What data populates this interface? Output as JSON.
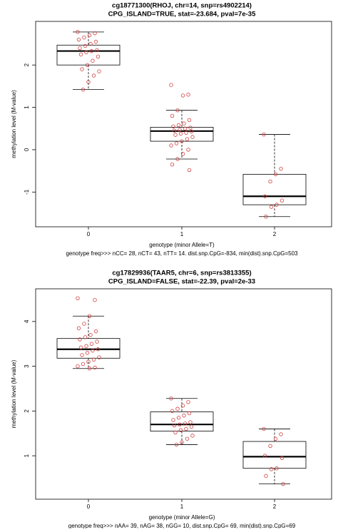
{
  "chart_data": [
    {
      "type": "box",
      "title": "cg18771300(RHOJ, chr=14, snp=rs4902214)",
      "subtitle": "CPG_ISLAND=TRUE, stat=-23.684, pval=7e-35",
      "y_label": "methylation level (M-value)",
      "x_label": "genotype (minor Allele=T)",
      "caption": "genotype freq>>> nCC= 28, nCT= 43, nTT= 14. dist.snp.CpG=-834, min(dist).snp.CpG=503",
      "categories": [
        "0",
        "1",
        "2"
      ],
      "boxes": [
        {
          "min": 1.42,
          "q1": 2.0,
          "median": 2.33,
          "q3": 2.47,
          "max": 2.78
        },
        {
          "min": -0.22,
          "q1": 0.2,
          "median": 0.44,
          "q3": 0.53,
          "max": 0.93
        },
        {
          "min": -1.58,
          "q1": -1.3,
          "median": -1.1,
          "q3": -0.58,
          "max": 0.36
        }
      ],
      "points": [
        [
          2.78,
          2.75,
          2.7,
          2.65,
          2.6,
          2.55,
          2.5,
          2.45,
          2.4,
          2.35,
          2.33,
          2.3,
          2.25,
          2.2,
          2.1,
          2.0,
          1.9,
          1.85,
          1.75,
          1.6,
          1.42
        ],
        [
          1.53,
          1.3,
          1.28,
          0.93,
          0.8,
          0.7,
          0.62,
          0.58,
          0.55,
          0.52,
          0.5,
          0.47,
          0.45,
          0.43,
          0.4,
          0.38,
          0.35,
          0.3,
          0.25,
          0.2,
          0.15,
          0.1,
          0.0,
          -0.1,
          -0.22,
          -0.35,
          -0.48
        ],
        [
          0.36,
          -0.45,
          -0.58,
          -0.75,
          -1.1,
          -1.2,
          -1.3,
          -1.35,
          -1.58
        ]
      ],
      "point_color": "#d04040",
      "ylim": [
        -1.82,
        3.03
      ],
      "yticks": [
        -1,
        0,
        1,
        2
      ]
    },
    {
      "type": "box",
      "title": "cg17829936(TAAR5, chr=6, snp=rs3813355)",
      "subtitle": "CPG_ISLAND=FALSE, stat=-22.39, pval=2e-33",
      "y_label": "methylation level (M-value)",
      "x_label": "genotype (minor Allele=G)",
      "caption": "genotype freq>>> nAA= 39, nAG= 38, nGG= 10, dist.snp.CpG= 69, min(dist).snp.CpG=69",
      "categories": [
        "0",
        "1",
        "2"
      ],
      "boxes": [
        {
          "min": 2.95,
          "q1": 3.18,
          "median": 3.38,
          "q3": 3.62,
          "max": 4.12
        },
        {
          "min": 1.25,
          "q1": 1.55,
          "median": 1.7,
          "q3": 1.98,
          "max": 2.28
        },
        {
          "min": 0.37,
          "q1": 0.72,
          "median": 0.98,
          "q3": 1.32,
          "max": 1.6
        }
      ],
      "points": [
        [
          4.52,
          4.48,
          4.12,
          3.95,
          3.85,
          3.78,
          3.7,
          3.65,
          3.6,
          3.55,
          3.5,
          3.45,
          3.42,
          3.38,
          3.35,
          3.3,
          3.25,
          3.2,
          3.15,
          3.1,
          3.05,
          3.0,
          2.97,
          2.95
        ],
        [
          2.28,
          2.2,
          2.12,
          2.05,
          2.0,
          1.95,
          1.9,
          1.85,
          1.8,
          1.75,
          1.72,
          1.7,
          1.68,
          1.65,
          1.6,
          1.57,
          1.52,
          1.45,
          1.38,
          1.3,
          1.25
        ],
        [
          1.6,
          1.48,
          1.38,
          1.22,
          1.0,
          0.95,
          0.72,
          0.7,
          0.55,
          0.37
        ]
      ],
      "point_color": "#d04040",
      "ylim": [
        0.03,
        4.73
      ],
      "yticks": [
        1,
        2,
        3,
        4
      ]
    }
  ]
}
